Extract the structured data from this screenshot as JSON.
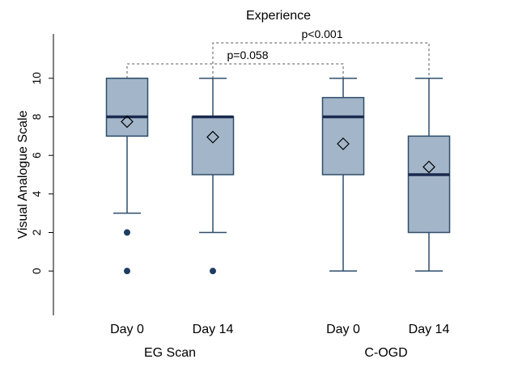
{
  "chart_data": {
    "type": "box",
    "title": "Experience",
    "ylabel": "Visual Analogue Scale",
    "ylim": [
      -2.3,
      12.3
    ],
    "yticks": [
      0,
      2,
      4,
      6,
      8,
      10
    ],
    "grid": false,
    "groups": [
      {
        "name": "EG Scan",
        "categories": [
          "Day 0",
          "Day 14"
        ]
      },
      {
        "name": "C-OGD",
        "categories": [
          "Day 0",
          "Day 14"
        ]
      }
    ],
    "boxes": [
      {
        "group": "EG Scan",
        "category": "Day 0",
        "whisker_low": 3,
        "q1": 7,
        "median": 8,
        "q3": 10,
        "whisker_high": 10,
        "mean": 7.75,
        "outliers": [
          2,
          0
        ]
      },
      {
        "group": "EG Scan",
        "category": "Day 14",
        "whisker_low": 2,
        "q1": 5,
        "median": 8,
        "q3": 8,
        "whisker_high": 10,
        "mean": 6.95,
        "outliers": [
          0
        ]
      },
      {
        "group": "C-OGD",
        "category": "Day 0",
        "whisker_low": 0,
        "q1": 5,
        "median": 8,
        "q3": 9,
        "whisker_high": 10,
        "mean": 6.6,
        "outliers": []
      },
      {
        "group": "C-OGD",
        "category": "Day 14",
        "whisker_low": 0,
        "q1": 2,
        "median": 5,
        "q3": 7,
        "whisker_high": 10,
        "mean": 5.4,
        "outliers": []
      }
    ],
    "annotations": [
      {
        "text": "p=0.058",
        "from": 0,
        "to": 2
      },
      {
        "text": "p<0.001",
        "from": 1,
        "to": 3
      }
    ],
    "colors": {
      "box_fill": "#a3b5c8",
      "box_stroke": "#2e4d6b",
      "median": "#1a2a4f",
      "outlier": "#1f3d63"
    }
  }
}
